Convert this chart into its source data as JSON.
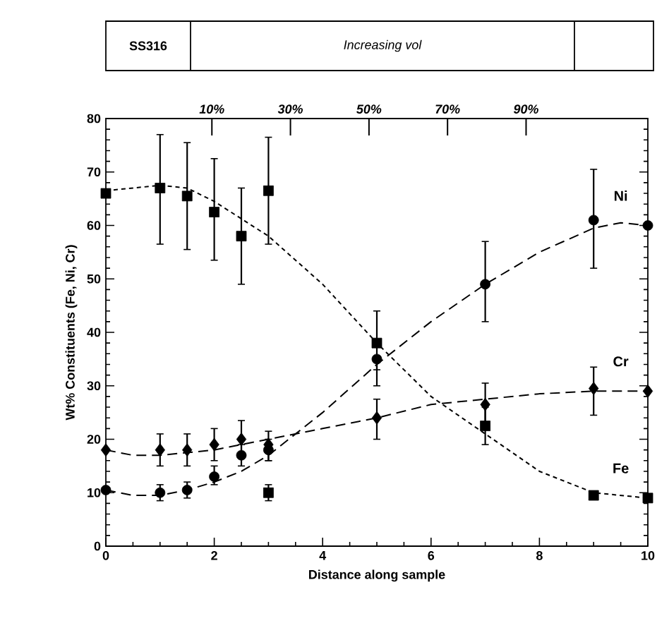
{
  "chart_data": {
    "type": "scatter",
    "xlabel": "Distance along sample",
    "ylabel": "Wt% Constituents (Fe, Ni, Cr)",
    "annotations": [
      "SS316",
      "Increasing vol"
    ],
    "xlim": [
      0,
      10
    ],
    "xticks": [
      0,
      2,
      4,
      6,
      8,
      10
    ],
    "ylim": [
      0,
      80
    ],
    "yticks": [
      0,
      10,
      20,
      30,
      40,
      50,
      60,
      70,
      80
    ],
    "x2lim": [
      -17,
      121
    ],
    "x2ticks": [
      {
        "value": 10,
        "label": "10%"
      },
      {
        "value": 30,
        "label": "30%"
      },
      {
        "value": 50,
        "label": "50%"
      },
      {
        "value": 70,
        "label": "70%"
      },
      {
        "value": 90,
        "label": "90%"
      }
    ],
    "grid": false,
    "legend": "right",
    "series": [
      {
        "name": "Fe",
        "type": "scatter",
        "marker": "square",
        "color": "#000000",
        "x": [
          0,
          1,
          1.5,
          2,
          2.5,
          3,
          3,
          5,
          7,
          9,
          10
        ],
        "values": [
          66,
          67,
          65.5,
          62.5,
          58,
          66.5,
          10,
          38,
          22.5,
          9.5,
          9
        ],
        "errors": [
          null,
          [
            56.5,
            77
          ],
          [
            55.5,
            75.5
          ],
          [
            53.5,
            72.5
          ],
          [
            49,
            67
          ],
          [
            56.5,
            76.5
          ],
          [
            8.5,
            11.5
          ],
          [
            33,
            44
          ],
          [
            19,
            26
          ],
          null,
          null
        ]
      },
      {
        "name": "Ni",
        "type": "scatter",
        "marker": "circle",
        "color": "#000000",
        "x": [
          0,
          1,
          1.5,
          2,
          2.5,
          3,
          5,
          7,
          9,
          10
        ],
        "values": [
          10.5,
          10,
          10.5,
          13,
          17,
          18,
          35,
          49,
          61,
          60
        ],
        "errors": [
          null,
          [
            8.5,
            11.5
          ],
          [
            9,
            12
          ],
          [
            11.5,
            15
          ],
          [
            15,
            19
          ],
          [
            16,
            20
          ],
          [
            30,
            35
          ],
          [
            42,
            57
          ],
          [
            52,
            70.5
          ],
          null
        ]
      },
      {
        "name": "Cr",
        "type": "scatter",
        "marker": "diamond",
        "color": "#000000",
        "x": [
          0,
          1,
          1.5,
          2,
          2.5,
          3,
          5,
          7,
          9,
          10
        ],
        "values": [
          18,
          18,
          18,
          19,
          20,
          19,
          24,
          26.5,
          29.5,
          29
        ],
        "errors": [
          null,
          [
            15,
            21
          ],
          [
            15,
            21
          ],
          [
            16,
            22
          ],
          [
            17,
            23.5
          ],
          [
            16,
            21.5
          ],
          [
            20,
            27.5
          ],
          [
            23,
            30.5
          ],
          [
            24.5,
            33.5
          ],
          null
        ]
      },
      {
        "type": "line",
        "marker": "none",
        "line_style": "dotted",
        "color": "#000000",
        "x": [
          0,
          1,
          1.5,
          2,
          3,
          4,
          5,
          5.5,
          6,
          7,
          8,
          9,
          10
        ],
        "values": [
          66.5,
          67.5,
          67,
          64.5,
          58,
          49,
          38,
          33,
          28,
          21,
          14,
          10,
          9
        ]
      },
      {
        "type": "line",
        "marker": "none",
        "line_style": "dashed",
        "color": "#000000",
        "x": [
          0,
          0.5,
          1,
          1.5,
          2,
          2.5,
          3,
          4,
          5,
          6,
          7,
          8,
          9,
          9.5,
          10
        ],
        "values": [
          10.5,
          9.5,
          9.5,
          10.5,
          12,
          14,
          17,
          25,
          34,
          42,
          49,
          55,
          59.5,
          60.5,
          60
        ]
      },
      {
        "type": "line",
        "marker": "none",
        "line_style": "dashed",
        "color": "#000000",
        "x": [
          0,
          0.5,
          1,
          2,
          3,
          4,
          5,
          6,
          7,
          8,
          9,
          10
        ],
        "values": [
          18,
          17,
          17,
          18,
          20,
          22,
          24,
          26.5,
          27.5,
          28.5,
          29,
          29
        ]
      }
    ]
  }
}
